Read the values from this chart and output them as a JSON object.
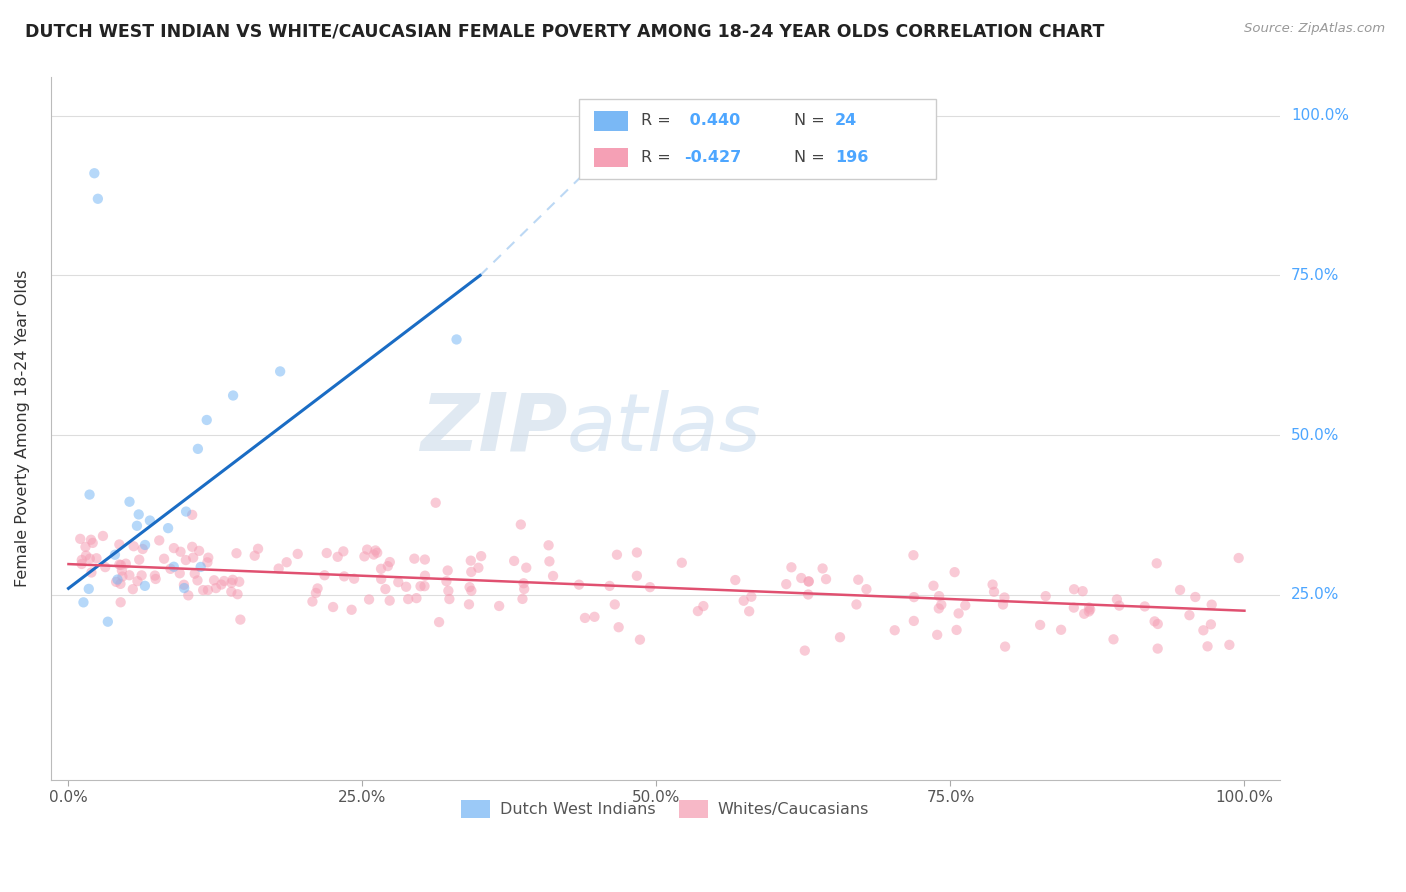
{
  "title": "DUTCH WEST INDIAN VS WHITE/CAUCASIAN FEMALE POVERTY AMONG 18-24 YEAR OLDS CORRELATION CHART",
  "source": "Source: ZipAtlas.com",
  "ylabel": "Female Poverty Among 18-24 Year Olds",
  "watermark_zip": "ZIP",
  "watermark_atlas": "atlas",
  "legend_blue_label": "Dutch West Indians",
  "legend_pink_label": "Whites/Caucasians",
  "legend_blue_R": 0.44,
  "legend_blue_N": 24,
  "legend_pink_R": -0.427,
  "legend_pink_N": 196,
  "blue_color": "#7ab8f5",
  "pink_color": "#f5a0b5",
  "blue_line_color": "#1a6cc4",
  "pink_line_color": "#e05070",
  "blue_dash_color": "#a0c8f0",
  "bg_color": "#ffffff",
  "grid_color": "#dddddd",
  "right_label_color": "#4da6ff",
  "scatter_alpha": 0.55,
  "scatter_size": 55,
  "xlim": [
    0.0,
    1.0
  ],
  "ylim": [
    0.0,
    1.0
  ],
  "xtick_vals": [
    0.0,
    0.25,
    0.5,
    0.75,
    1.0
  ],
  "xtick_labels": [
    "0.0%",
    "25.0%",
    "50.0%",
    "75.0%",
    "100.0%"
  ],
  "ytick_vals": [
    0.25,
    0.5,
    0.75,
    1.0
  ],
  "ytick_labels": [
    "25.0%",
    "50.0%",
    "75.0%",
    "100.0%"
  ]
}
